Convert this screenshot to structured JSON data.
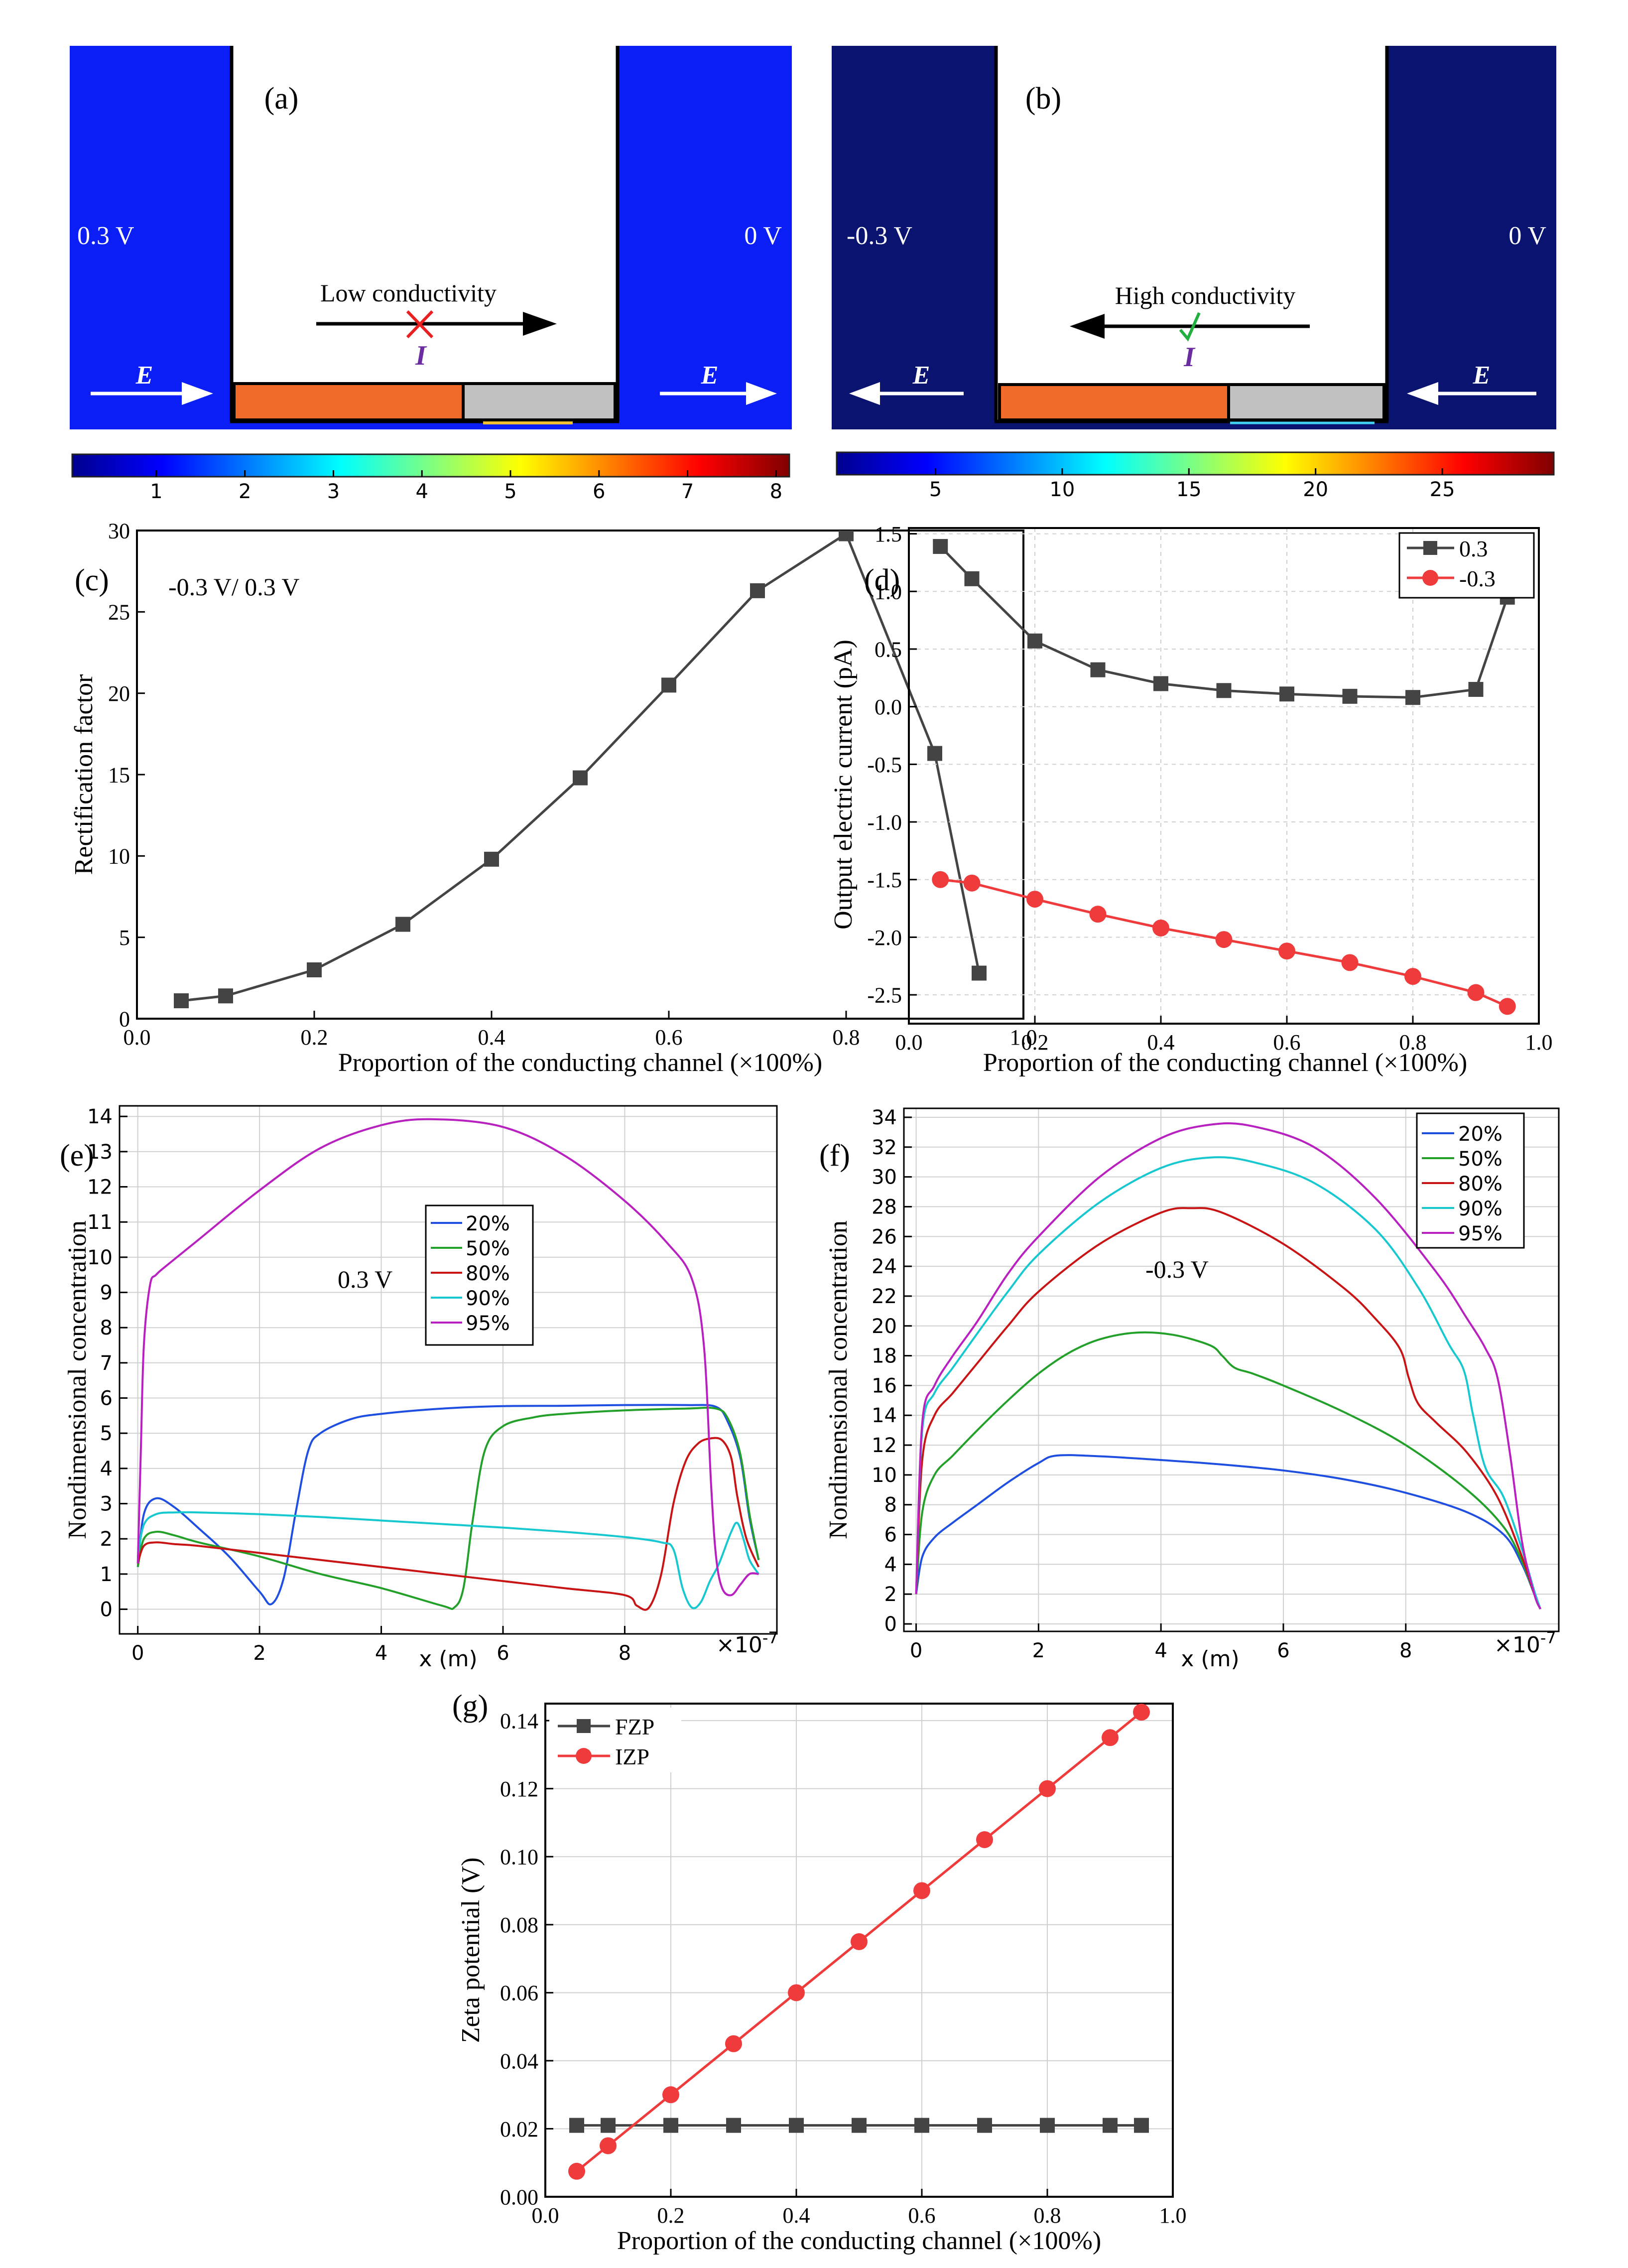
{
  "colors": {
    "deep_blue": "#0a1ef5",
    "navy": "#0a1470",
    "orange": "#f06a28",
    "gray_block": "#c0c0c0",
    "square_series": "#444444",
    "circle_series": "#ef3b3b",
    "line_20": "#1f4fe0",
    "line_50": "#22a02a",
    "line_80": "#c81414",
    "line_90": "#18c8d0",
    "line_95": "#b820c0"
  },
  "panel_a": {
    "letter": "(a)",
    "left_voltage": "0.3 V",
    "right_voltage": "0 V",
    "annotation": "Low conductivity",
    "current_label": "I",
    "mark": "cross-mark",
    "field_label": "E",
    "colorbar_ticks": [
      "1",
      "2",
      "3",
      "4",
      "5",
      "6",
      "7",
      "8"
    ]
  },
  "panel_b": {
    "letter": "(b)",
    "left_voltage": "-0.3 V",
    "right_voltage": "0 V",
    "annotation": "High conductivity",
    "current_label": "I",
    "mark": "check-mark",
    "field_label": "E",
    "colorbar_ticks": [
      "5",
      "10",
      "15",
      "20",
      "25"
    ]
  },
  "chart_data": [
    {
      "id": "c",
      "letter": "(c)",
      "type": "line",
      "annotation": "-0.3 V/ 0.3 V",
      "xlabel": "Proportion of the conducting channel (×100%)",
      "ylabel": "Rectification factor",
      "xlim": [
        0,
        1.0
      ],
      "ylim": [
        0,
        30
      ],
      "xticks": [
        "0.0",
        "0.2",
        "0.4",
        "0.6",
        "0.8",
        "1.0"
      ],
      "yticks": [
        "0",
        "5",
        "10",
        "15",
        "20",
        "25",
        "30"
      ],
      "x": [
        0.05,
        0.1,
        0.2,
        0.3,
        0.4,
        0.5,
        0.6,
        0.7,
        0.8,
        0.9,
        0.95
      ],
      "series": [
        {
          "name": "Rectification factor",
          "marker": "square",
          "values": [
            1.1,
            1.4,
            3.0,
            5.8,
            9.8,
            14.8,
            20.5,
            26.3,
            29.8,
            16.3,
            2.8
          ]
        }
      ]
    },
    {
      "id": "d",
      "letter": "(d)",
      "type": "line",
      "xlabel": "Proportion of the conducting channel (×100%)",
      "ylabel": "Output electric current (pA)",
      "xlim": [
        0,
        1.0
      ],
      "ylim": [
        -2.75,
        1.55
      ],
      "xticks": [
        "0.0",
        "0.2",
        "0.4",
        "0.6",
        "0.8",
        "1.0"
      ],
      "yticks": [
        "1.5",
        "1.0",
        "0.5",
        "0.0",
        "-0.5",
        "-1.0",
        "-1.5",
        "-2.0",
        "-2.5"
      ],
      "legend_position": "top-right",
      "x": [
        0.05,
        0.1,
        0.2,
        0.3,
        0.4,
        0.5,
        0.6,
        0.7,
        0.8,
        0.9,
        0.95
      ],
      "series": [
        {
          "name": "0.3",
          "marker": "square",
          "values": [
            1.39,
            1.11,
            0.57,
            0.32,
            0.2,
            0.14,
            0.11,
            0.09,
            0.08,
            0.15,
            0.95
          ]
        },
        {
          "name": "-0.3",
          "marker": "circle",
          "values": [
            -1.5,
            -1.53,
            -1.67,
            -1.8,
            -1.92,
            -2.02,
            -2.12,
            -2.22,
            -2.34,
            -2.48,
            -2.6
          ]
        }
      ]
    },
    {
      "id": "e",
      "letter": "(e)",
      "type": "line",
      "annotation": "0.3 V",
      "xlabel": "x (m)",
      "ylabel": "Nondimensional concentration",
      "xlim": [
        -0.3,
        10.5
      ],
      "ylim": [
        -0.7,
        14.3
      ],
      "xticks": [
        "0",
        "2",
        "4",
        "6",
        "8"
      ],
      "yticks": [
        "0",
        "1",
        "2",
        "3",
        "4",
        "5",
        "6",
        "7",
        "8",
        "9",
        "10",
        "11",
        "12",
        "13",
        "14"
      ],
      "exponent_label": "×10",
      "exponent_power": "-7",
      "legend_position": "center",
      "series": [
        {
          "name": "20%",
          "x": [
            0,
            0.1,
            0.3,
            0.6,
            1.0,
            1.5,
            2.0,
            2.2,
            2.4,
            2.6,
            2.8,
            3.0,
            3.5,
            4.0,
            5.0,
            6.0,
            7.0,
            8.0,
            9.0,
            9.5,
            9.7,
            9.9,
            10.05,
            10.2
          ],
          "values": [
            1.2,
            2.7,
            3.15,
            2.9,
            2.3,
            1.5,
            0.5,
            0.15,
            0.9,
            2.8,
            4.5,
            5.0,
            5.4,
            5.55,
            5.7,
            5.77,
            5.78,
            5.8,
            5.8,
            5.75,
            5.3,
            4.3,
            2.6,
            1.4
          ]
        },
        {
          "name": "50%",
          "x": [
            0,
            0.1,
            0.3,
            0.6,
            1.0,
            2.0,
            3.0,
            4.0,
            5.0,
            5.2,
            5.35,
            5.5,
            5.7,
            6.0,
            6.5,
            7.0,
            8.0,
            9.0,
            9.5,
            9.7,
            9.9,
            10.05,
            10.2
          ],
          "values": [
            1.2,
            2.0,
            2.2,
            2.1,
            1.9,
            1.5,
            1.0,
            0.6,
            0.1,
            0.05,
            0.6,
            2.5,
            4.5,
            5.2,
            5.45,
            5.55,
            5.65,
            5.7,
            5.7,
            5.4,
            4.4,
            2.7,
            1.4
          ]
        },
        {
          "name": "80%",
          "x": [
            0,
            0.1,
            0.3,
            0.6,
            1.0,
            2.0,
            3.0,
            4.0,
            5.0,
            6.0,
            7.0,
            8.0,
            8.2,
            8.4,
            8.6,
            8.8,
            9.0,
            9.2,
            9.4,
            9.6,
            9.75,
            9.85,
            10.0,
            10.2
          ],
          "values": [
            1.3,
            1.8,
            1.9,
            1.85,
            1.8,
            1.6,
            1.4,
            1.2,
            1.0,
            0.8,
            0.6,
            0.4,
            0.1,
            0.05,
            1.0,
            3.0,
            4.2,
            4.7,
            4.85,
            4.8,
            4.3,
            3.2,
            2.0,
            1.2
          ]
        },
        {
          "name": "90%",
          "x": [
            0,
            0.1,
            0.3,
            0.6,
            1.0,
            2.0,
            3.0,
            4.0,
            5.0,
            6.0,
            7.0,
            8.0,
            8.6,
            8.8,
            8.95,
            9.1,
            9.25,
            9.4,
            9.55,
            9.75,
            9.85,
            9.95,
            10.05,
            10.2
          ],
          "values": [
            1.5,
            2.4,
            2.7,
            2.75,
            2.75,
            2.7,
            2.62,
            2.52,
            2.42,
            2.32,
            2.2,
            2.05,
            1.9,
            1.7,
            0.6,
            0.05,
            0.2,
            0.8,
            1.3,
            2.2,
            2.45,
            2.0,
            1.4,
            1.0
          ]
        },
        {
          "name": "95%",
          "x": [
            0,
            0.05,
            0.1,
            0.2,
            0.3,
            0.5,
            1.0,
            2.0,
            3.0,
            4.0,
            4.85,
            6.0,
            7.0,
            8.0,
            8.7,
            9.1,
            9.3,
            9.42,
            9.5,
            9.6,
            9.75,
            9.9,
            10.05,
            10.2
          ],
          "values": [
            1.3,
            4.5,
            7.5,
            9.2,
            9.5,
            9.8,
            10.5,
            11.9,
            13.1,
            13.75,
            13.92,
            13.7,
            12.9,
            11.6,
            10.4,
            9.4,
            7.5,
            3.5,
            1.5,
            0.6,
            0.4,
            0.7,
            1.0,
            1.0
          ]
        }
      ]
    },
    {
      "id": "f",
      "letter": "(f)",
      "type": "line",
      "annotation": "-0.3 V",
      "xlabel": "x (m)",
      "ylabel": "Nondimensional concentration",
      "xlim": [
        -0.2,
        10.5
      ],
      "ylim": [
        -0.5,
        34.6
      ],
      "xticks": [
        "0",
        "2",
        "4",
        "6",
        "8"
      ],
      "yticks": [
        "0",
        "2",
        "4",
        "6",
        "8",
        "10",
        "12",
        "14",
        "16",
        "18",
        "20",
        "22",
        "24",
        "26",
        "28",
        "30",
        "32",
        "34"
      ],
      "exponent_label": "×10",
      "exponent_power": "-7",
      "legend_position": "top-right",
      "series": [
        {
          "name": "20%",
          "x": [
            0,
            0.1,
            0.3,
            0.6,
            1.0,
            1.5,
            2.0,
            2.3,
            3.0,
            4.0,
            5.0,
            6.0,
            7.0,
            8.0,
            9.0,
            9.6,
            9.9,
            10.1,
            10.2
          ],
          "values": [
            2.0,
            4.5,
            5.8,
            6.8,
            8.0,
            9.5,
            10.8,
            11.3,
            11.25,
            11.0,
            10.7,
            10.3,
            9.7,
            8.8,
            7.5,
            6.0,
            4.0,
            2.0,
            1.0
          ]
        },
        {
          "name": "50%",
          "x": [
            0,
            0.1,
            0.3,
            0.6,
            1.0,
            1.5,
            2.0,
            2.5,
            3.0,
            3.6,
            4.2,
            4.8,
            5.0,
            5.2,
            5.5,
            6.0,
            7.0,
            8.0,
            9.0,
            9.6,
            9.9,
            10.1,
            10.2
          ],
          "values": [
            2.0,
            7.5,
            10.0,
            11.3,
            13.0,
            15.0,
            16.8,
            18.2,
            19.1,
            19.55,
            19.4,
            18.7,
            18.0,
            17.2,
            16.8,
            16.0,
            14.2,
            12.0,
            9.0,
            6.5,
            4.2,
            2.0,
            1.0
          ]
        },
        {
          "name": "80%",
          "x": [
            0,
            0.1,
            0.3,
            0.6,
            1.0,
            1.5,
            2.0,
            3.0,
            4.0,
            4.5,
            5.0,
            6.0,
            7.0,
            7.5,
            7.9,
            8.05,
            8.2,
            8.5,
            9.0,
            9.5,
            9.9,
            10.1,
            10.2
          ],
          "values": [
            2.0,
            11.0,
            14.0,
            15.5,
            17.5,
            20.0,
            22.3,
            25.5,
            27.6,
            27.9,
            27.6,
            25.5,
            22.5,
            20.5,
            18.5,
            16.5,
            14.8,
            13.5,
            11.5,
            8.5,
            4.5,
            2.0,
            1.0
          ]
        },
        {
          "name": "90%",
          "x": [
            0,
            0.1,
            0.3,
            0.6,
            1.0,
            1.5,
            2.0,
            3.0,
            4.0,
            4.8,
            5.5,
            6.5,
            7.5,
            8.2,
            8.7,
            8.95,
            9.1,
            9.3,
            9.6,
            9.9,
            10.1,
            10.2
          ],
          "values": [
            2.0,
            13.0,
            15.5,
            17.2,
            19.5,
            22.3,
            24.8,
            28.3,
            30.6,
            31.3,
            31.0,
            29.6,
            26.5,
            22.6,
            18.8,
            17.0,
            14.0,
            10.5,
            8.5,
            5.0,
            2.2,
            1.0
          ]
        },
        {
          "name": "95%",
          "x": [
            0,
            0.1,
            0.3,
            0.6,
            1.0,
            1.5,
            2.0,
            3.0,
            4.0,
            4.8,
            5.5,
            6.5,
            7.5,
            8.5,
            9.0,
            9.3,
            9.5,
            9.7,
            9.9,
            10.1,
            10.2
          ],
          "values": [
            2.0,
            13.5,
            16.0,
            18.0,
            20.3,
            23.5,
            26.0,
            30.0,
            32.6,
            33.5,
            33.4,
            32.0,
            28.6,
            23.6,
            20.5,
            18.5,
            16.5,
            11.5,
            5.5,
            2.0,
            1.0
          ]
        }
      ]
    },
    {
      "id": "g",
      "letter": "(g)",
      "type": "line",
      "xlabel": "Proportion of the conducting channel (×100%)",
      "ylabel": "Zeta potential (V)",
      "xlim": [
        0,
        1.0
      ],
      "ylim": [
        0,
        0.145
      ],
      "xticks": [
        "0.0",
        "0.2",
        "0.4",
        "0.6",
        "0.8",
        "1.0"
      ],
      "yticks": [
        "0.00",
        "0.02",
        "0.04",
        "0.06",
        "0.08",
        "0.10",
        "0.12",
        "0.14"
      ],
      "legend_position": "top-left",
      "x": [
        0.05,
        0.1,
        0.2,
        0.3,
        0.4,
        0.5,
        0.6,
        0.7,
        0.8,
        0.9,
        0.95
      ],
      "series": [
        {
          "name": "FZP",
          "marker": "square",
          "values": [
            0.021,
            0.021,
            0.021,
            0.021,
            0.021,
            0.021,
            0.021,
            0.021,
            0.021,
            0.021,
            0.021
          ]
        },
        {
          "name": "IZP",
          "marker": "circle",
          "values": [
            0.0075,
            0.015,
            0.03,
            0.045,
            0.06,
            0.075,
            0.09,
            0.105,
            0.12,
            0.135,
            0.1425
          ]
        }
      ]
    }
  ]
}
